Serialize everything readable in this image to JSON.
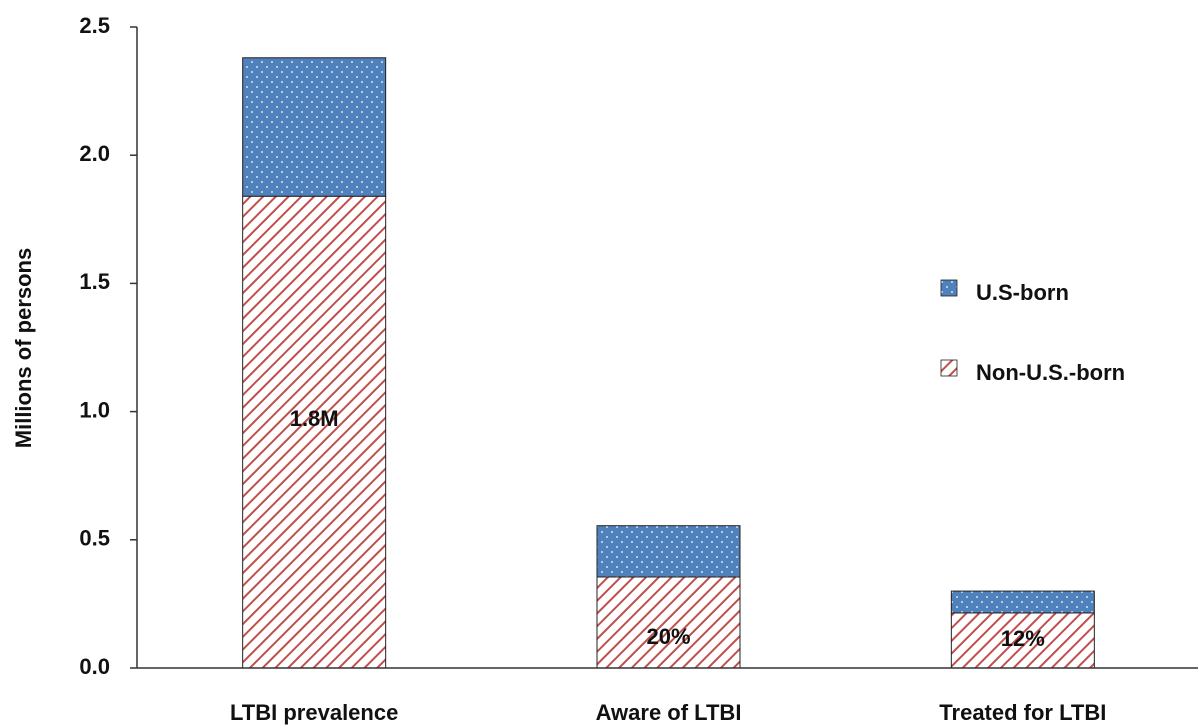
{
  "chart_data": {
    "type": "stacked-bar",
    "y_label": "Millions  of persons",
    "categories": [
      "LTBI prevalence",
      "Aware of LTBI",
      "Treated for LTBI"
    ],
    "series": [
      {
        "name": "Non-U.S.-born",
        "color": "#c0504d",
        "pattern": "hatch",
        "values": [
          1.84,
          0.355,
          0.215
        ]
      },
      {
        "name": "U.S-born",
        "color": "#4f81bd",
        "pattern": "dots",
        "values": [
          0.54,
          0.2,
          0.085
        ]
      }
    ],
    "bar_annotations": [
      "1.8M",
      "20%",
      "12%"
    ],
    "ylim": [
      0,
      2.5
    ],
    "yticks": [
      {
        "value": 0,
        "label": "0.0"
      },
      0.5,
      {
        "value": 1,
        "label": "1.0"
      },
      1.5,
      {
        "value": 2,
        "label": "2.0"
      },
      2.5
    ],
    "legend": "right"
  }
}
